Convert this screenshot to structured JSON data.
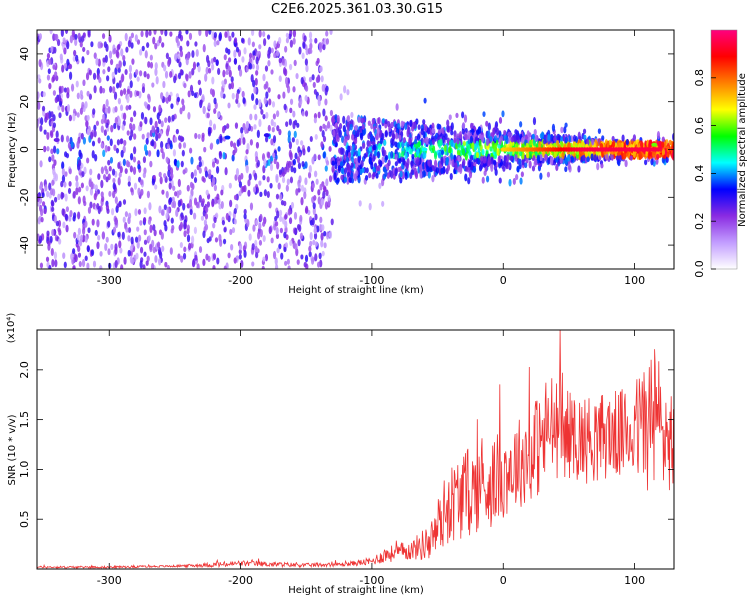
{
  "title": "C2E6.2025.361.03.30.G15",
  "chart_data": [
    {
      "type": "heatmap",
      "xlabel": "Height of straight line (km)",
      "ylabel": "Frequency (Hz)",
      "xlim": [
        -355,
        130
      ],
      "ylim": [
        -50,
        50
      ],
      "xticks": [
        -300,
        -200,
        -100,
        0,
        100
      ],
      "yticks": [
        -40,
        -20,
        0,
        20,
        40
      ],
      "xtick_labels": [
        "-300",
        "-200",
        "-100",
        "0",
        "100"
      ],
      "ytick_labels": [
        "-40",
        "-20",
        "0",
        "20",
        "40"
      ],
      "colorbar": {
        "label": "Normalized spectral amplitude",
        "range": [
          0,
          1
        ],
        "ticks": [
          0.0,
          0.2,
          0.4,
          0.6,
          0.8
        ],
        "tick_labels": [
          "0.0",
          "0.2",
          "0.4",
          "0.6",
          "0.8"
        ],
        "colors": [
          "#ffffff",
          "#c29dff",
          "#8a2be2",
          "#0000ff",
          "#00ffff",
          "#00ff00",
          "#ffff00",
          "#ff8000",
          "#ff0000",
          "#ff007f"
        ]
      },
      "description_points": [
        {
          "x": -340,
          "y": 4,
          "v": 0.25
        },
        {
          "x": -210,
          "y": 5,
          "v": 0.35
        },
        {
          "x": -180,
          "y": 6,
          "v": 0.3
        },
        {
          "x": -60,
          "y": 0,
          "v": 0.45
        },
        {
          "x": 0,
          "y": 0,
          "v": 0.75
        },
        {
          "x": 60,
          "y": 0,
          "v": 0.9
        },
        {
          "x": 115,
          "y": 2,
          "v": 0.6
        }
      ]
    },
    {
      "type": "line",
      "xlabel": "Height of straight line (km)",
      "ylabel": "SNR (10 * v/v)",
      "scale_label": "(x10⁴)",
      "xlim": [
        -355,
        130
      ],
      "ylim": [
        0,
        2.4
      ],
      "xticks": [
        -300,
        -200,
        -100,
        0,
        100
      ],
      "yticks": [
        0.5,
        1.0,
        1.5,
        2.0
      ],
      "xtick_labels": [
        "-300",
        "-200",
        "-100",
        "0",
        "100"
      ],
      "ytick_labels": [
        "0.5",
        "1.0",
        "1.5",
        "2.0"
      ],
      "series": [
        {
          "name": "SNR",
          "color": "#ee3333",
          "x": [
            -355,
            -300,
            -250,
            -210,
            -200,
            -150,
            -120,
            -100,
            -90,
            -70,
            -55,
            -50,
            -45,
            -40,
            -30,
            -20,
            -10,
            0,
            10,
            20,
            30,
            35,
            40,
            50,
            60,
            70,
            80,
            90,
            100,
            105,
            110,
            115,
            120,
            125,
            130
          ],
          "y": [
            0.02,
            0.02,
            0.03,
            0.05,
            0.06,
            0.04,
            0.05,
            0.08,
            0.15,
            0.2,
            0.3,
            0.45,
            0.6,
            0.7,
            0.8,
            0.85,
            0.9,
            1.0,
            1.1,
            1.2,
            1.35,
            1.5,
            1.45,
            1.4,
            1.35,
            1.35,
            1.4,
            1.4,
            1.45,
            1.5,
            1.55,
            1.6,
            1.5,
            1.4,
            1.3
          ],
          "noise": [
            0.01,
            0.01,
            0.01,
            0.03,
            0.03,
            0.02,
            0.02,
            0.04,
            0.08,
            0.1,
            0.2,
            0.3,
            0.35,
            0.4,
            0.45,
            0.45,
            0.45,
            0.45,
            0.45,
            0.5,
            0.55,
            0.6,
            0.5,
            0.45,
            0.45,
            0.45,
            0.45,
            0.45,
            0.5,
            0.6,
            0.75,
            0.8,
            0.7,
            0.6,
            0.5
          ]
        }
      ]
    }
  ]
}
